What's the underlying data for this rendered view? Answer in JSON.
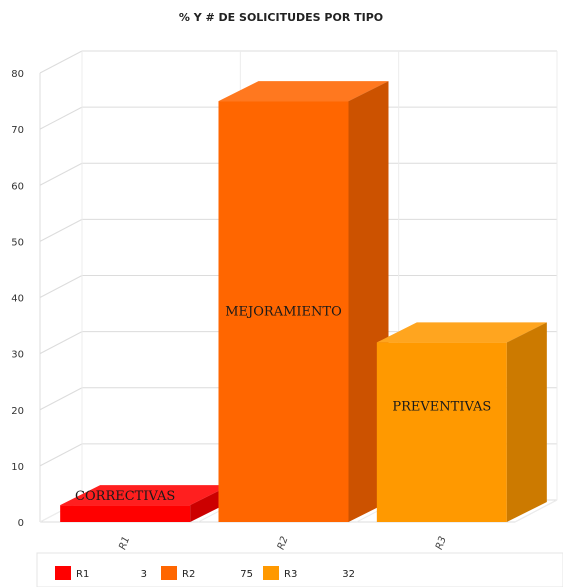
{
  "chart_data": {
    "type": "bar",
    "title": "% Y # DE SOLICITUDES POR TIPO",
    "categories": [
      "R1",
      "R2",
      "R3"
    ],
    "values": [
      3,
      75,
      32
    ],
    "bar_labels": [
      "CORRECTIVAS",
      "MEJORAMIENTO",
      "PREVENTIVAS"
    ],
    "colors": [
      "#ff0000",
      "#ff6600",
      "#ff9900"
    ],
    "ylim": [
      0,
      80
    ],
    "yticks": [
      0,
      10,
      20,
      30,
      40,
      50,
      60,
      70,
      80
    ],
    "grid": true,
    "legend": {
      "position": "bottom",
      "entries": [
        {
          "name": "R1",
          "value": "3"
        },
        {
          "name": "R2",
          "value": "75"
        },
        {
          "name": "R3",
          "value": "32"
        }
      ]
    }
  }
}
